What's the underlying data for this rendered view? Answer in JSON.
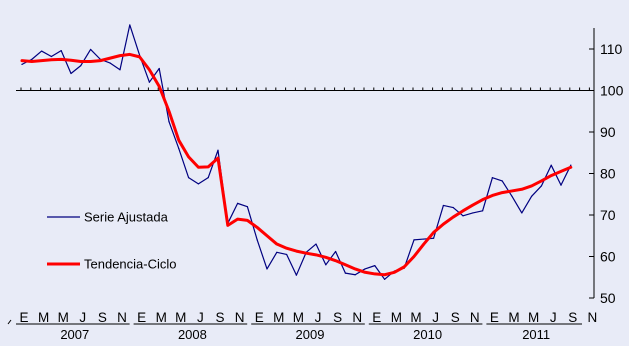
{
  "chart_data": {
    "type": "line",
    "background": "#e8ebf7",
    "y_axis": {
      "ylim": [
        50,
        115
      ],
      "ticks": [
        "50",
        "60",
        "70",
        "80",
        "90",
        "100",
        "110"
      ],
      "position": "right",
      "reference_line": 100
    },
    "x_axis": {
      "month_labels": [
        "E",
        "M",
        "M",
        "J",
        "S",
        "N"
      ],
      "years": [
        "2007",
        "2008",
        "2009",
        "2010",
        "2011"
      ],
      "months_per_year": 12
    },
    "legend": {
      "placement": "left",
      "entries": [
        "Serie Ajustada",
        "Tendencia-Ciclo"
      ]
    },
    "series": [
      {
        "name": "Serie Ajustada",
        "color": "#000080",
        "values": [
          106.3,
          107.5,
          109.5,
          108.2,
          109.6,
          104.1,
          106,
          109.9,
          107.5,
          106.6,
          105,
          115.8,
          108.5,
          102,
          105.3,
          92.5,
          86,
          79,
          77.5,
          79,
          85.6,
          68,
          72.8,
          72,
          64,
          57,
          61,
          60.5,
          55.5,
          61,
          63,
          58,
          61.2,
          56,
          55.6,
          57,
          57.8,
          54.5,
          56.5,
          57.2,
          64,
          64.2,
          64.4,
          72.3,
          71.8,
          69.8,
          70.5,
          71,
          79,
          78.2,
          74.5,
          70.5,
          74.5,
          77,
          82,
          77.2,
          82
        ]
      },
      {
        "name": "Tendencia-Ciclo",
        "color": "#ff0000",
        "values": [
          107.2,
          107,
          107.2,
          107.4,
          107.5,
          107.3,
          107,
          107,
          107.2,
          107.8,
          108.4,
          108.7,
          108.1,
          105,
          101,
          95,
          88,
          84,
          81.5,
          81.6,
          83.7,
          67.5,
          69,
          68.7,
          67,
          65,
          63,
          62,
          61.3,
          60.8,
          60.4,
          59.8,
          59,
          58,
          57,
          56.2,
          55.8,
          55.6,
          56.2,
          57.5,
          60,
          63,
          65.8,
          67.8,
          69.5,
          71,
          72.4,
          73.7,
          74.7,
          75.4,
          75.8,
          76.2,
          77,
          78.2,
          79.5,
          80.5,
          81.5
        ]
      }
    ]
  }
}
